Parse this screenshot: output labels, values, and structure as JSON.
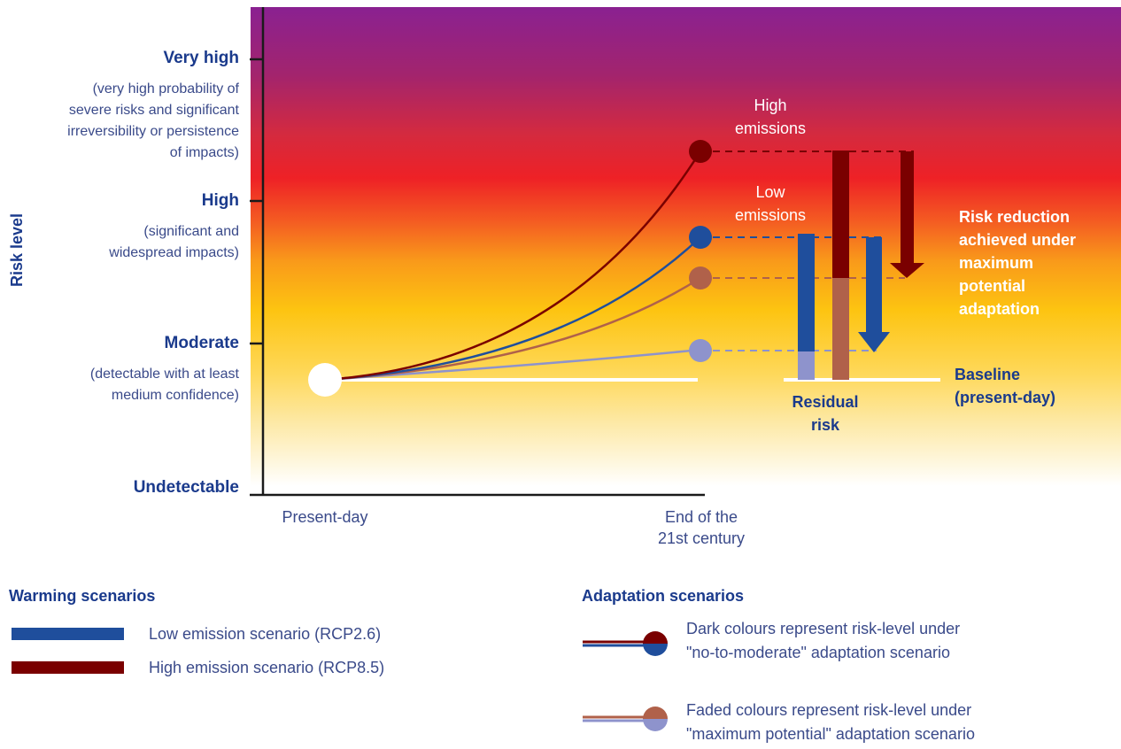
{
  "y_axis": {
    "label": "Risk level"
  },
  "levels": [
    {
      "title": "Very high",
      "desc": [
        "(very high probability of",
        "severe risks and significant",
        "irreversibility or persistence",
        "of impacts)"
      ]
    },
    {
      "title": "High",
      "desc": [
        "(significant and",
        "widespread impacts)"
      ]
    },
    {
      "title": "Moderate",
      "desc": [
        "(detectable with at least",
        "medium confidence)"
      ]
    },
    {
      "title": "Undetectable",
      "desc": []
    }
  ],
  "x_axis": {
    "ticks": [
      "Present-day",
      "End of the",
      "21st century"
    ]
  },
  "labels": {
    "high_emissions": [
      "High",
      "emissions"
    ],
    "low_emissions": [
      "Low",
      "emissions"
    ],
    "risk_reduction": [
      "Risk reduction",
      "achieved under",
      "maximum",
      "potential",
      "adaptation"
    ],
    "baseline": [
      "Baseline",
      "(present-day)"
    ],
    "residual": [
      "Residual",
      "risk"
    ]
  },
  "legend": {
    "warming_title": "Warming scenarios",
    "warming": [
      {
        "label": "Low emission scenario (RCP2.6)",
        "color": "#1f4e9c"
      },
      {
        "label": "High emission scenario (RCP8.5)",
        "color": "#7a0000"
      }
    ],
    "adaptation_title": "Adaptation scenarios",
    "adaptation": [
      {
        "lines": [
          "Dark colours represent risk-level under",
          "\"no-to-moderate\" adaptation scenario"
        ]
      },
      {
        "lines": [
          "Faded colours represent risk-level under",
          "\"maximum potential\" adaptation scenario"
        ]
      }
    ]
  },
  "colors": {
    "high": "#7a0000",
    "low": "#1f4e9c",
    "high_faded": "#b0614a",
    "low_faded": "#8e93cc",
    "text_blue": "#1a3a8c"
  }
}
